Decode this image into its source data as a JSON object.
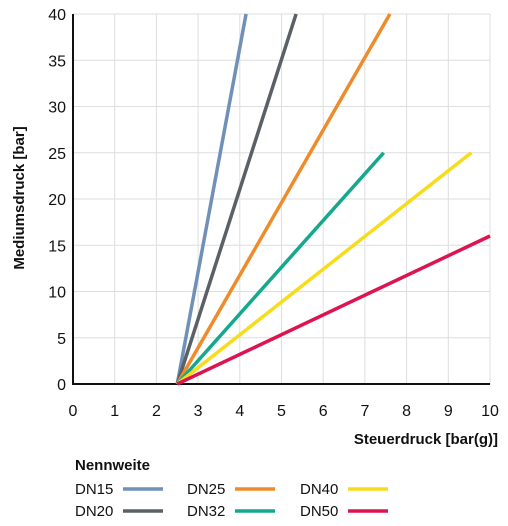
{
  "chart_data": {
    "type": "line",
    "xlabel": "Steuerdruck [bar(g)]",
    "ylabel": "Mediumsdruck [bar]",
    "xlim": [
      0,
      10
    ],
    "ylim": [
      0,
      40
    ],
    "x_ticks": [
      "0",
      "1",
      "2",
      "3",
      "4",
      "5",
      "6",
      "7",
      "8",
      "9",
      "10"
    ],
    "y_ticks": [
      "0",
      "5",
      "10",
      "15",
      "20",
      "25",
      "30",
      "35",
      "40"
    ],
    "grid": true,
    "legend": {
      "title": "Nennweite",
      "placement": "bottom-left"
    },
    "series": [
      {
        "name": "DN15",
        "color": "#7090b8",
        "points": [
          [
            2.5,
            0
          ],
          [
            4.15,
            40
          ]
        ]
      },
      {
        "name": "DN20",
        "color": "#5a6066",
        "points": [
          [
            2.5,
            0
          ],
          [
            5.35,
            40
          ]
        ]
      },
      {
        "name": "DN25",
        "color": "#ee8c2c",
        "points": [
          [
            2.5,
            0
          ],
          [
            7.6,
            40
          ]
        ]
      },
      {
        "name": "DN32",
        "color": "#14a88c",
        "points": [
          [
            2.5,
            0
          ],
          [
            7.45,
            25
          ]
        ]
      },
      {
        "name": "DN40",
        "color": "#f7dc1c",
        "points": [
          [
            2.5,
            0
          ],
          [
            9.55,
            25
          ]
        ]
      },
      {
        "name": "DN50",
        "color": "#dc1450",
        "points": [
          [
            2.5,
            0
          ],
          [
            10,
            16
          ]
        ]
      }
    ]
  }
}
